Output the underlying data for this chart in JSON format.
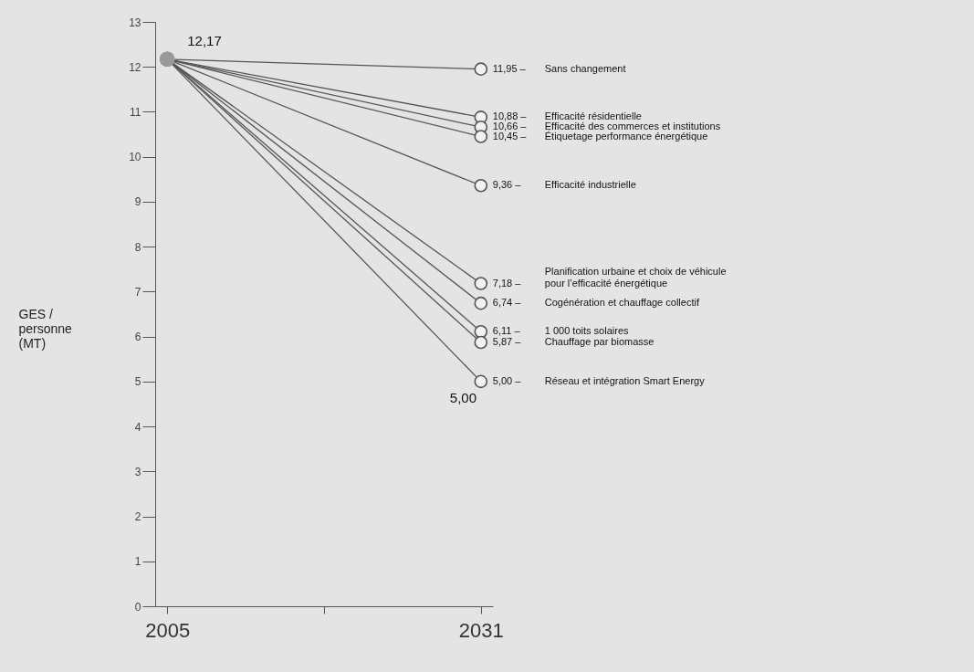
{
  "chart_data": {
    "type": "line",
    "ylabel": "GES / personne (MT)",
    "x": [
      2005,
      2031
    ],
    "xlim": [
      2004,
      2032
    ],
    "xticks": [
      2005,
      {
        "value": 2018,
        "label": null
      },
      2031
    ],
    "ylim": [
      0,
      13
    ],
    "yticks": [
      0,
      1,
      2,
      3,
      4,
      5,
      6,
      7,
      8,
      9,
      10,
      11,
      12,
      13
    ],
    "grid": false,
    "legend": false,
    "marker": "circle",
    "series": [
      {
        "name": "Sans changement",
        "color": "#555555",
        "values": [
          12.17,
          11.95
        ],
        "value_labels": [
          null,
          "11,95 –"
        ]
      },
      {
        "name": "Efficacité résidentielle",
        "color": "#555555",
        "values": [
          12.17,
          10.88
        ],
        "value_labels": [
          null,
          "10,88 –"
        ]
      },
      {
        "name": "Efficacité des commerces et institutions",
        "color": "#555555",
        "values": [
          12.17,
          10.66
        ],
        "value_labels": [
          null,
          "10,66 –"
        ]
      },
      {
        "name": "Étiquetage performance énergétique",
        "color": "#555555",
        "values": [
          12.17,
          10.45
        ],
        "value_labels": [
          null,
          "10,45 –"
        ]
      },
      {
        "name": "Efficacité industrielle",
        "color": "#555555",
        "values": [
          12.17,
          9.36
        ],
        "value_labels": [
          null,
          "9,36 –"
        ]
      },
      {
        "name": "Planification urbaine et choix de véhicule\npour l’efficacité énergétique",
        "color": "#555555",
        "values": [
          12.17,
          7.18
        ],
        "value_labels": [
          null,
          "7,18 –"
        ]
      },
      {
        "name": "Cogénération et chauffage collectif",
        "color": "#555555",
        "values": [
          12.17,
          6.74
        ],
        "value_labels": [
          null,
          "6,74 –"
        ]
      },
      {
        "name": "1 000 toits solaires",
        "color": "#555555",
        "values": [
          12.17,
          6.11
        ],
        "value_labels": [
          null,
          "6,11 –"
        ]
      },
      {
        "name": "Chauffage par biomasse",
        "color": "#555555",
        "values": [
          12.17,
          5.87
        ],
        "value_labels": [
          null,
          "5,87 –"
        ]
      },
      {
        "name": "Réseau et intégration Smart Energy",
        "color": "#555555",
        "values": [
          12.17,
          5.0
        ],
        "value_labels": [
          null,
          "5,00 –"
        ]
      }
    ],
    "annotations": [
      {
        "text": "12,17",
        "x": 2005,
        "y": 12.17
      },
      {
        "text": "5,00",
        "x": 2031,
        "y": 5.0
      }
    ]
  }
}
